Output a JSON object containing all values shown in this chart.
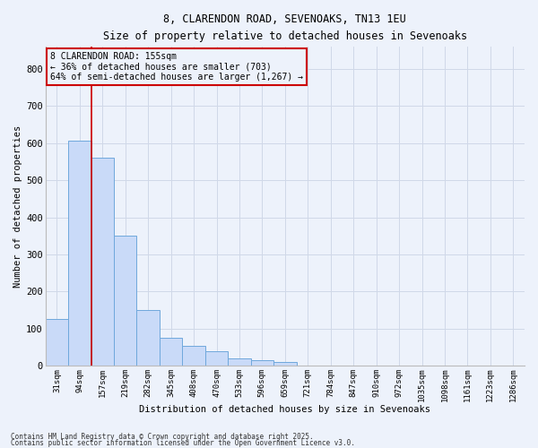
{
  "title_line1": "8, CLARENDON ROAD, SEVENOAKS, TN13 1EU",
  "title_line2": "Size of property relative to detached houses in Sevenoaks",
  "xlabel": "Distribution of detached houses by size in Sevenoaks",
  "ylabel": "Number of detached properties",
  "bar_labels": [
    "31sqm",
    "94sqm",
    "157sqm",
    "219sqm",
    "282sqm",
    "345sqm",
    "408sqm",
    "470sqm",
    "533sqm",
    "596sqm",
    "659sqm",
    "721sqm",
    "784sqm",
    "847sqm",
    "910sqm",
    "972sqm",
    "1035sqm",
    "1098sqm",
    "1161sqm",
    "1223sqm",
    "1286sqm"
  ],
  "bar_values": [
    125,
    608,
    560,
    350,
    150,
    75,
    53,
    38,
    20,
    15,
    10,
    0,
    0,
    0,
    0,
    0,
    0,
    0,
    0,
    0,
    0
  ],
  "bar_color": "#c9daf8",
  "bar_edgecolor": "#6fa8dc",
  "grid_color": "#d0d8e8",
  "vline_color": "#cc0000",
  "annotation_text": "8 CLARENDON ROAD: 155sqm\n← 36% of detached houses are smaller (703)\n64% of semi-detached houses are larger (1,267) →",
  "annotation_box_color": "#cc0000",
  "ylim": [
    0,
    860
  ],
  "yticks": [
    0,
    100,
    200,
    300,
    400,
    500,
    600,
    700,
    800
  ],
  "footnote1": "Contains HM Land Registry data © Crown copyright and database right 2025.",
  "footnote2": "Contains public sector information licensed under the Open Government Licence v3.0.",
  "bg_color": "#edf2fb"
}
